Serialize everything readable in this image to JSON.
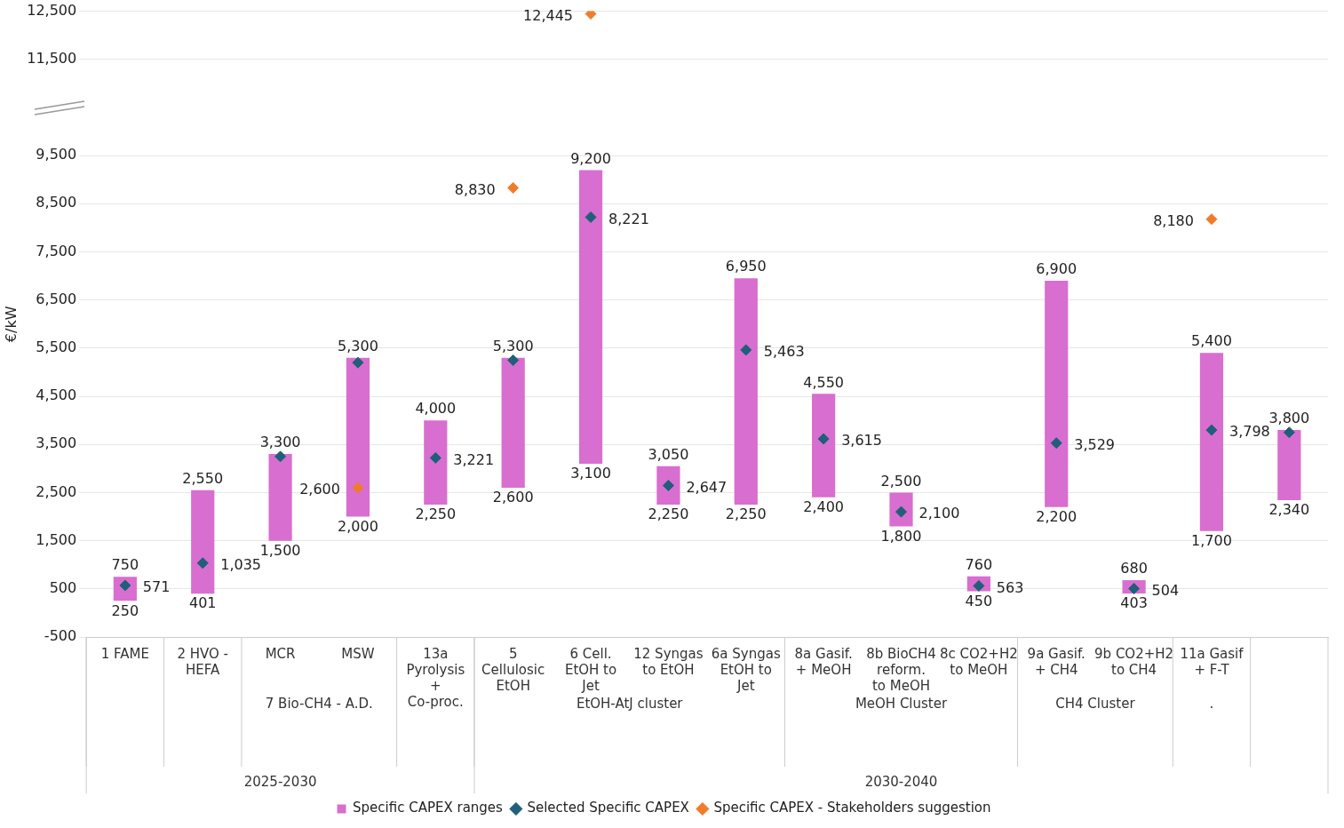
{
  "chart_data": {
    "type": "bar",
    "ylabel": "€/kW",
    "categories": [
      "1 FAME",
      "2 HVO - HEFA",
      "MCR",
      "MSW",
      "13a Pyrolysis + Co-proc.",
      "5 Cellulosic EtOH",
      "6 Cell. EtOH to Jet",
      "12 Syngas to EtOH",
      "6a Syngas EtOH to Jet",
      "8a Gasif. + MeOH",
      "8b BioCH4 reform. to MeOH",
      "8c CO2+H2 to MeOH",
      "9a Gasif. + CH4",
      "9b CO2+H2 to CH4",
      "11a Gasif + F-T",
      null
    ],
    "series": [
      {
        "name": "Specific CAPEX ranges",
        "color": "#d86ecf",
        "base": [
          250,
          401,
          1500,
          2000,
          2250,
          2600,
          3100,
          2250,
          2250,
          2400,
          1800,
          450,
          2200,
          403,
          1700,
          2340
        ],
        "values": [
          500,
          2149,
          1800,
          3300,
          1750,
          2700,
          6100,
          800,
          4700,
          2150,
          700,
          310,
          4700,
          277,
          3700,
          1460
        ],
        "value_labels": [
          "750",
          "2,550",
          "3,300",
          "5,300",
          "4,000",
          "5,300",
          "9,200",
          "3,050",
          "6,950",
          "4,550",
          "2,500",
          "760",
          "6,900",
          "680",
          "5,400",
          "3,800"
        ]
      },
      {
        "name": "Selected Specific CAPEX",
        "type": "scatter",
        "color": "#1f5f7a",
        "values": [
          571,
          1035,
          3250,
          5200,
          3221,
          5250,
          8221,
          2647,
          5463,
          3615,
          2100,
          563,
          3529,
          504,
          3798,
          3750
        ],
        "value_labels": [
          "571",
          "1,035",
          null,
          null,
          "3,221",
          null,
          "8,221",
          "2,647",
          "5,463",
          "3,615",
          "2,100",
          "563",
          "3,529",
          "504",
          "3,798",
          null
        ]
      },
      {
        "name": "Specific CAPEX - Stakeholders suggestion",
        "type": "scatter",
        "color": "#f07c2a",
        "values": [
          null,
          null,
          null,
          2600,
          null,
          8830,
          12445,
          null,
          null,
          null,
          null,
          null,
          null,
          null,
          8180,
          null
        ],
        "value_labels": [
          null,
          null,
          null,
          "2,600",
          null,
          "8,830",
          "12,445",
          null,
          null,
          null,
          null,
          null,
          null,
          null,
          "8,180",
          null
        ]
      }
    ],
    "ylim": [
      -500,
      12500
    ],
    "yticks": [
      -500,
      500,
      {
        "value": 1500,
        "label": "1,500"
      },
      {
        "value": 2500,
        "label": "2,500"
      },
      {
        "value": 3500,
        "label": "3,500"
      },
      {
        "value": 4500,
        "label": "4,500"
      },
      {
        "value": 5500,
        "label": "5,500"
      },
      {
        "value": 6500,
        "label": "6,500"
      },
      {
        "value": 7500,
        "label": "7,500"
      },
      {
        "value": 8500,
        "label": "8,500"
      },
      {
        "value": 9500,
        "label": "9,500"
      },
      {
        "value": 11500,
        "label": "11,500"
      },
      {
        "value": 12500,
        "label": "12,500"
      }
    ],
    "grid": "y",
    "legend": "bottom",
    "marker": "diamond",
    "annotations": [
      {
        "text": "250",
        "x": "1 FAME",
        "y": 250
      },
      {
        "text": "401",
        "x": "2 HVO - HEFA",
        "y": 401
      },
      {
        "text": "1,500",
        "x": "MCR",
        "y": 1500
      },
      {
        "text": "2,000",
        "x": "MSW",
        "y": 2000
      },
      {
        "text": "2,250",
        "x": "13a Pyrolysis + Co-proc.",
        "y": 2250
      },
      {
        "text": "2,600",
        "x": "5 Cellulosic EtOH",
        "y": 2600
      },
      {
        "text": "3,100",
        "x": "6 Cell. EtOH to Jet",
        "y": 3100
      },
      {
        "text": "2,250",
        "x": "12 Syngas to EtOH",
        "y": 2250
      },
      {
        "text": "2,250",
        "x": "6a Syngas EtOH to Jet",
        "y": 2250
      },
      {
        "text": "2,400",
        "x": "8a Gasif. + MeOH",
        "y": 2400
      },
      {
        "text": "1,800",
        "x": "8b BioCH4 reform. to MeOH",
        "y": 1800
      },
      {
        "text": "450",
        "x": "8c CO2+H2 to MeOH",
        "y": 450
      },
      {
        "text": "2,200",
        "x": "9a Gasif. + CH4",
        "y": 2200
      },
      {
        "text": "403",
        "x": "9b CO2+H2 to CH4",
        "y": 403
      },
      {
        "text": "1,700",
        "x": "11a Gasif + F-T",
        "y": 1700
      },
      {
        "text": "2,340",
        "y": 2340
      },
      "7 Bio-CH4 - A.D.",
      "EtOH-AtJ cluster",
      "MeOH Cluster",
      "CH4 Cluster",
      ".",
      "2025-2030",
      "2030-2040"
    ]
  }
}
